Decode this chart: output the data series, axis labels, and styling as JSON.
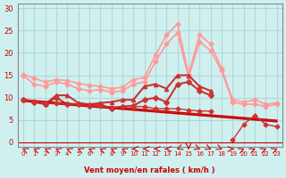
{
  "background_color": "#d0f0f0",
  "grid_color": "#b0d8d8",
  "x_labels": [
    "0",
    "1",
    "2",
    "3",
    "4",
    "5",
    "6",
    "7",
    "8",
    "9",
    "10",
    "11",
    "12",
    "13",
    "14",
    "15",
    "16",
    "17",
    "18",
    "19",
    "20",
    "21",
    "22",
    "23"
  ],
  "xlabel": "Vent moyen/en rafales ( km/h )",
  "xlabel_color": "#cc0000",
  "y_ticks": [
    0,
    5,
    10,
    15,
    20,
    25,
    30
  ],
  "ylim": [
    -1,
    31
  ],
  "xlim": [
    -0.5,
    23.5
  ],
  "series": [
    {
      "color": "#ff9999",
      "linewidth": 1.2,
      "marker": "D",
      "markersize": 2.5,
      "values": [
        15.2,
        14.3,
        13.5,
        14.0,
        13.8,
        13.2,
        12.8,
        12.5,
        12.0,
        12.3,
        14.0,
        14.5,
        19.5,
        24.0,
        26.5,
        15.2,
        24.0,
        22.0,
        16.5,
        9.5,
        9.0,
        9.5,
        8.5,
        8.8
      ]
    },
    {
      "color": "#ff9999",
      "linewidth": 1.2,
      "marker": "D",
      "markersize": 2.5,
      "values": [
        15.0,
        13.0,
        12.5,
        13.5,
        13.0,
        12.0,
        11.5,
        11.8,
        11.2,
        11.5,
        13.0,
        13.5,
        18.0,
        22.0,
        24.5,
        14.5,
        22.5,
        20.5,
        16.0,
        9.0,
        8.5,
        8.5,
        8.0,
        8.5
      ]
    },
    {
      "color": "#cc3333",
      "linewidth": 1.5,
      "marker": "^",
      "markersize": 3,
      "values": [
        9.5,
        9.2,
        8.5,
        10.5,
        10.5,
        8.8,
        8.5,
        8.8,
        9.0,
        9.5,
        9.5,
        12.5,
        13.0,
        12.0,
        15.0,
        15.0,
        12.5,
        11.5,
        null,
        null,
        null,
        null,
        null,
        null
      ]
    },
    {
      "color": "#cc3333",
      "linewidth": 1.5,
      "marker": "D",
      "markersize": 3,
      "values": [
        9.5,
        9.0,
        8.5,
        10.0,
        8.5,
        8.5,
        8.2,
        8.5,
        7.5,
        8.0,
        8.2,
        9.5,
        10.0,
        9.0,
        13.0,
        13.5,
        11.5,
        10.5,
        null,
        null,
        null,
        null,
        null,
        null
      ]
    },
    {
      "color": "#cc0000",
      "linewidth": 1.2,
      "marker": null,
      "markersize": 0,
      "values": [
        9.5,
        9.3,
        9.1,
        8.9,
        8.7,
        8.5,
        8.3,
        8.1,
        7.9,
        7.7,
        7.5,
        7.3,
        7.1,
        6.9,
        6.7,
        6.5,
        6.3,
        6.1,
        5.9,
        5.7,
        5.5,
        5.3,
        5.1,
        4.9
      ]
    },
    {
      "color": "#cc0000",
      "linewidth": 1.2,
      "marker": null,
      "markersize": 0,
      "values": [
        9.2,
        9.0,
        8.8,
        8.6,
        8.4,
        8.2,
        8.0,
        7.8,
        7.6,
        7.4,
        7.2,
        7.0,
        6.8,
        6.6,
        6.4,
        6.2,
        6.0,
        5.8,
        5.6,
        5.4,
        5.2,
        5.0,
        4.8,
        4.6
      ]
    },
    {
      "color": "#cc3333",
      "linewidth": 1.0,
      "marker": "D",
      "markersize": 2.5,
      "values": [
        9.5,
        9.2,
        8.8,
        8.8,
        8.5,
        8.5,
        8.2,
        8.2,
        7.8,
        8.0,
        8.0,
        8.0,
        7.5,
        7.5,
        7.5,
        7.2,
        7.0,
        7.0,
        null,
        0.5,
        4.0,
        6.0,
        4.0,
        3.5
      ]
    }
  ],
  "wind_arrows": {
    "y_position": -0.8,
    "colors": [
      "#cc0000"
    ],
    "angles": [
      225,
      225,
      225,
      225,
      225,
      225,
      225,
      225,
      225,
      225,
      270,
      270,
      270,
      270,
      315,
      0,
      45,
      45,
      45,
      90,
      135,
      135,
      135,
      135
    ]
  }
}
